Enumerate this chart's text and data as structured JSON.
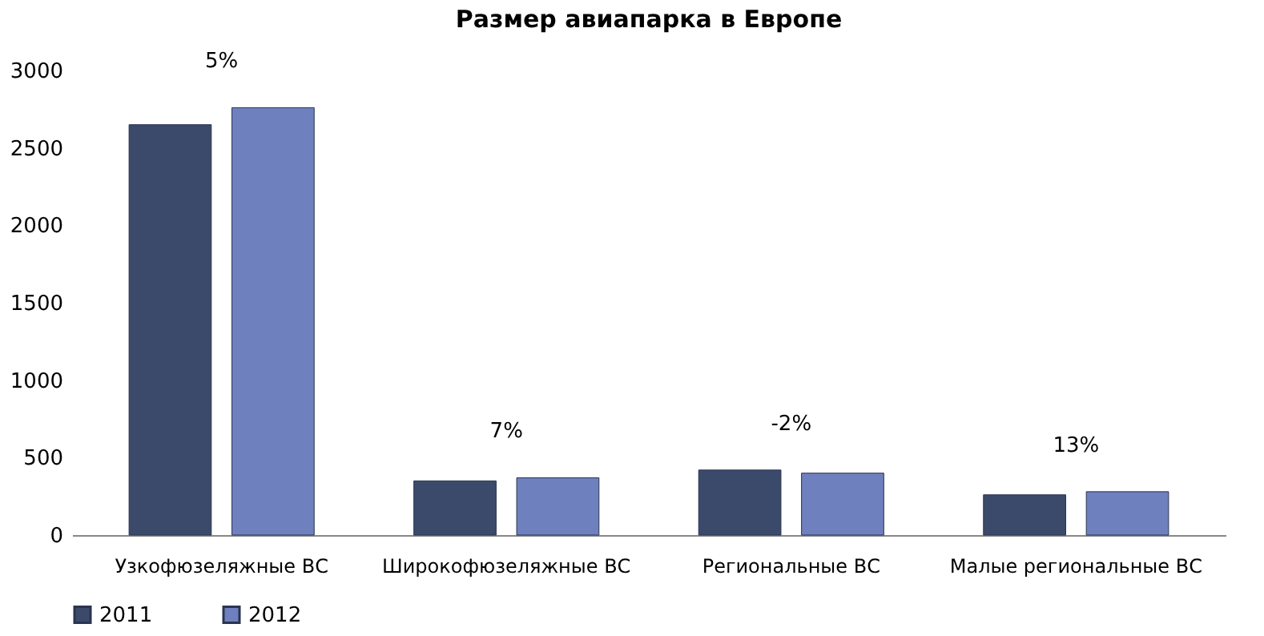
{
  "chart_data": {
    "type": "bar",
    "title": "Размер авиапарка в Европе",
    "categories": [
      "Узкофюзеляжные ВС",
      "Широкофюзеляжные ВС",
      "Региональные ВС",
      "Малые региональные ВС"
    ],
    "series": [
      {
        "name": "2011",
        "color": "#3b4a6b",
        "values": [
          2650,
          350,
          420,
          260
        ]
      },
      {
        "name": "2012",
        "color": "#6e80bd",
        "values": [
          2760,
          370,
          400,
          280
        ]
      }
    ],
    "ylim": [
      0,
      3000
    ],
    "yticks": [
      0,
      500,
      1000,
      1500,
      2000,
      2500,
      3000
    ],
    "grid": false,
    "legend": "bottom",
    "annotations": [
      "5%",
      "7%",
      "-2%",
      "13%"
    ]
  }
}
